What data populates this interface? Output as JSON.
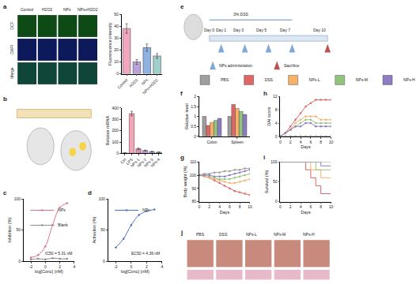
{
  "figure": {
    "panel_labels": [
      "a",
      "b",
      "c",
      "d",
      "e",
      "f",
      "g",
      "h",
      "i",
      "j"
    ],
    "microscopy": {
      "rows": [
        "DCF",
        "DAPI",
        "Merge"
      ],
      "columns": [
        "Control",
        "H2O2",
        "NPs",
        "NPs+H2O2"
      ],
      "row_colors": [
        "#0d4a16",
        "#0c1a5c",
        "#10463a"
      ]
    },
    "timeline": {
      "days": [
        0,
        1,
        3,
        5,
        7,
        10
      ],
      "day_labels": [
        "Day 0",
        "Day 1",
        "Day 3",
        "Day 5",
        "Day 7",
        "Day 10"
      ],
      "dss_label": "3% DSS",
      "dss_days": [
        0,
        7
      ],
      "treatment_days": [
        1,
        3,
        5,
        7
      ],
      "treatment_label": "NPs administration",
      "treatment_color": "#7fa8d8",
      "sacrifice_day": 10,
      "sacrifice_label": "Sacrifice",
      "sacrifice_color": "#c0504d"
    },
    "photos": {
      "labels": [
        "PBS",
        "DSS",
        "NPs-L",
        "NPs-M",
        "NPs-H"
      ],
      "color": "#c98a7e",
      "histology_color": "#e7b9c9"
    }
  },
  "chart_data": [
    {
      "type": "bar",
      "ylabel": "Fluorescence intensity",
      "categories": [
        "Control",
        "H2O2",
        "NPs",
        "NPs+H2O2"
      ],
      "values": [
        38,
        10,
        22,
        15
      ],
      "errors": [
        4,
        2,
        3,
        2
      ],
      "colors": [
        "#f2a7c0",
        "#b9a2d8",
        "#8fb2e0",
        "#9fd0c9"
      ],
      "ylim": [
        0,
        50
      ],
      "yticks": [
        0,
        10,
        20,
        30,
        40,
        50
      ]
    },
    {
      "type": "bar",
      "ylabel": "Relative mRNA",
      "categories": [
        "Ctrl",
        "LPS",
        "NPs-1",
        "NPs-2",
        "NPs-3",
        "NPs-4"
      ],
      "values": [
        3,
        350,
        40,
        25,
        15,
        10
      ],
      "errors": [
        1,
        20,
        6,
        4,
        3,
        2
      ],
      "colors": [
        "#bdbdbd",
        "#f4a6b8",
        "#e58fb0",
        "#c9a0dc",
        "#9fb7e6",
        "#a8d8c8"
      ],
      "ylim": [
        0,
        400
      ],
      "yticks": [
        0,
        100,
        200,
        300,
        400
      ]
    },
    {
      "type": "line",
      "xlabel": "log[Conc] (nM)",
      "ylabel": "Inhibition (%)",
      "x": [
        -2,
        -1,
        0,
        1,
        2,
        3
      ],
      "series": [
        {
          "name": "NPs",
          "color": "#d9738f",
          "values": [
            6,
            10,
            24,
            58,
            86,
            93
          ]
        },
        {
          "name": "Blank",
          "color": "#8c8c8c",
          "values": [
            3,
            4,
            3,
            5,
            4,
            4
          ]
        }
      ],
      "xlim": [
        -3,
        4
      ],
      "xticks": [
        -2,
        0,
        2,
        4
      ],
      "ylim": [
        0,
        100
      ],
      "yticks": [
        0,
        50,
        100
      ],
      "marker": "circle",
      "annotation": "IC50 = 5.31 nM"
    },
    {
      "type": "line",
      "xlabel": "log[Conc] (nM)",
      "ylabel": "Activation (%)",
      "x": [
        -2,
        -1,
        0,
        1,
        2,
        3
      ],
      "series": [
        {
          "name": "NPs",
          "color": "#5470c6",
          "values": [
            22,
            36,
            58,
            74,
            80,
            83
          ]
        }
      ],
      "xlim": [
        -3,
        4
      ],
      "xticks": [
        -2,
        0,
        2,
        4
      ],
      "ylim": [
        0,
        100
      ],
      "yticks": [
        0,
        50,
        100
      ],
      "marker": "circle",
      "annotation": "EC50 = 4.36 nM"
    },
    {
      "type": "bar",
      "ylabel": "Relative level",
      "categories": [
        "Colon",
        "Spleen"
      ],
      "series": [
        {
          "name": "PBS",
          "color": "#9e9e9e",
          "values": [
            1.0,
            1.0
          ]
        },
        {
          "name": "DSS",
          "color": "#e06666",
          "values": [
            0.55,
            1.6
          ]
        },
        {
          "name": "NPs-L",
          "color": "#f6b26b",
          "values": [
            0.7,
            1.4
          ]
        },
        {
          "name": "NPs-M",
          "color": "#93c47d",
          "values": [
            0.8,
            1.25
          ]
        },
        {
          "name": "NPs-H",
          "color": "#8e7cc3",
          "values": [
            0.9,
            1.1
          ]
        }
      ],
      "ylim": [
        0,
        2
      ],
      "yticks": [
        0,
        0.5,
        1,
        1.5,
        2
      ]
    },
    {
      "type": "line",
      "xlabel": "Days",
      "ylabel": "DAI score",
      "x": [
        0,
        1,
        2,
        3,
        4,
        5,
        6,
        7,
        8,
        9,
        10
      ],
      "series": [
        {
          "name": "PBS",
          "color": "#9e9e9e",
          "values": [
            0,
            0,
            0,
            0,
            0,
            0,
            0,
            0,
            0,
            0,
            0
          ]
        },
        {
          "name": "DSS",
          "color": "#e06666",
          "values": [
            0,
            1,
            3,
            5,
            7,
            9,
            10,
            11,
            11,
            11,
            11
          ]
        },
        {
          "name": "NPs-L",
          "color": "#f6b26b",
          "values": [
            0,
            1,
            2,
            4,
            5,
            6,
            6,
            6,
            5,
            5,
            5
          ]
        },
        {
          "name": "NPs-M",
          "color": "#93c47d",
          "values": [
            0,
            1,
            2,
            3,
            4,
            5,
            5,
            4,
            4,
            4,
            4
          ]
        },
        {
          "name": "NPs-H",
          "color": "#8e7cc3",
          "values": [
            0,
            1,
            2,
            3,
            3,
            4,
            4,
            3,
            3,
            3,
            3
          ]
        }
      ],
      "xlim": [
        0,
        10
      ],
      "xticks": [
        0,
        2,
        4,
        6,
        8,
        10
      ],
      "ylim": [
        0,
        12
      ],
      "yticks": [
        0,
        4,
        8,
        12
      ],
      "marker": "circle"
    },
    {
      "type": "line",
      "xlabel": "Days",
      "ylabel": "Body weight (%)",
      "x": [
        0,
        1,
        2,
        3,
        4,
        5,
        6,
        7,
        8,
        9,
        10
      ],
      "series": [
        {
          "name": "PBS",
          "color": "#9e9e9e",
          "values": [
            100,
            101,
            101,
            102,
            102,
            103,
            103,
            104,
            104,
            105,
            105
          ]
        },
        {
          "name": "DSS",
          "color": "#e06666",
          "values": [
            100,
            99,
            98,
            96,
            94,
            92,
            90,
            88,
            87,
            86,
            85
          ]
        },
        {
          "name": "NPs-L",
          "color": "#f6b26b",
          "values": [
            100,
            99,
            98,
            97,
            96,
            95,
            94,
            94,
            95,
            96,
            97
          ]
        },
        {
          "name": "NPs-M",
          "color": "#93c47d",
          "values": [
            100,
            100,
            99,
            98,
            97,
            97,
            97,
            98,
            99,
            100,
            101
          ]
        },
        {
          "name": "NPs-H",
          "color": "#8e7cc3",
          "values": [
            100,
            100,
            100,
            99,
            99,
            99,
            100,
            101,
            102,
            103,
            104
          ]
        }
      ],
      "xlim": [
        0,
        10
      ],
      "xticks": [
        0,
        2,
        4,
        6,
        8,
        10
      ],
      "ylim": [
        80,
        110
      ],
      "yticks": [
        80,
        90,
        100,
        110
      ],
      "marker": "circle"
    },
    {
      "type": "line",
      "xlabel": "Days",
      "ylabel": "Survival (%)",
      "x": [
        0,
        1,
        2,
        3,
        4,
        5,
        6,
        7,
        8,
        9,
        10
      ],
      "series": [
        {
          "name": "PBS",
          "color": "#9e9e9e",
          "values": [
            100,
            100,
            100,
            100,
            100,
            100,
            100,
            100,
            100,
            100,
            100
          ]
        },
        {
          "name": "DSS",
          "color": "#e06666",
          "values": [
            100,
            100,
            100,
            100,
            100,
            80,
            60,
            40,
            20,
            20,
            20
          ]
        },
        {
          "name": "NPs-L",
          "color": "#f6b26b",
          "values": [
            100,
            100,
            100,
            100,
            100,
            100,
            80,
            80,
            60,
            60,
            60
          ]
        },
        {
          "name": "NPs-M",
          "color": "#93c47d",
          "values": [
            100,
            100,
            100,
            100,
            100,
            100,
            100,
            80,
            80,
            80,
            80
          ]
        },
        {
          "name": "NPs-H",
          "color": "#8e7cc3",
          "values": [
            100,
            100,
            100,
            100,
            100,
            100,
            100,
            100,
            90,
            90,
            90
          ]
        }
      ],
      "xlim": [
        0,
        10
      ],
      "xticks": [
        0,
        2,
        4,
        6,
        8,
        10
      ],
      "ylim": [
        0,
        100
      ],
      "yticks": [
        0,
        50,
        100
      ],
      "line_style": "step"
    }
  ]
}
